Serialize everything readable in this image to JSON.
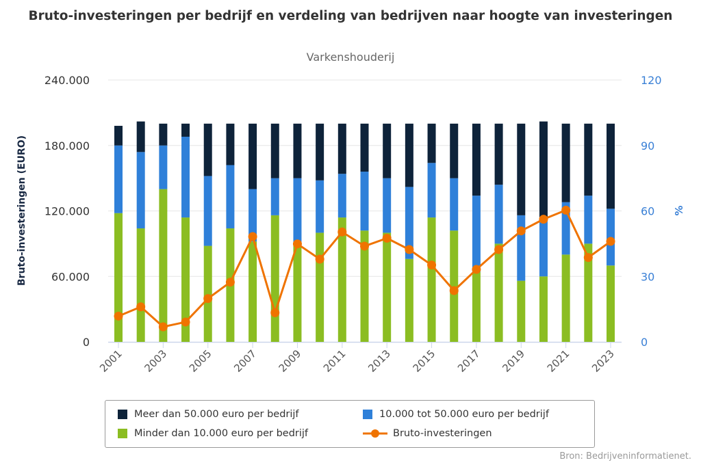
{
  "chart_data": {
    "type": "bar",
    "title": "Bruto-investeringen per bedrijf en verdeling van bedrijven naar hoogte van investeringen",
    "subtitle": "Varkenshouderij",
    "ylabel": "Bruto-investeringen (EURO)",
    "y2label": "%",
    "ylim": [
      0,
      240000
    ],
    "y2lim": [
      0,
      120
    ],
    "yticks": [
      "0",
      "60.000",
      "120.000",
      "180.000",
      "240.000"
    ],
    "y2ticks": [
      "0",
      "30",
      "60",
      "90",
      "120"
    ],
    "grid": true,
    "legend_position": "bottom",
    "categories": [
      "2001",
      "2002",
      "2003",
      "2004",
      "2005",
      "2006",
      "2007",
      "2008",
      "2009",
      "2010",
      "2011",
      "2012",
      "2013",
      "2014",
      "2015",
      "2016",
      "2017",
      "2018",
      "2019",
      "2020",
      "2021",
      "2022",
      "2023"
    ],
    "xtick_labels": [
      "2001",
      "2003",
      "2005",
      "2007",
      "2009",
      "2011",
      "2013",
      "2015",
      "2017",
      "2019",
      "2021",
      "2023"
    ],
    "series": [
      {
        "name": "Minder dan 10.000 euro per bedrijf",
        "type": "stacked-bar",
        "axis": "right",
        "color": "#8bbd22",
        "values": [
          59,
          52,
          70,
          57,
          44,
          52,
          46,
          58,
          45,
          50,
          57,
          51,
          50,
          38,
          57,
          51,
          32,
          45,
          28,
          30,
          40,
          45,
          35
        ]
      },
      {
        "name": "10.000 tot 50.000 euro per bedrijf",
        "type": "stacked-bar",
        "axis": "right",
        "color": "#2f80d9",
        "values": [
          31,
          35,
          20,
          37,
          32,
          29,
          24,
          17,
          30,
          24,
          20,
          27,
          25,
          33,
          25,
          24,
          35,
          27,
          30,
          27,
          24,
          22,
          26
        ]
      },
      {
        "name": "Meer dan 50.000 euro per bedrijf",
        "type": "stacked-bar",
        "axis": "right",
        "color": "#0e233a",
        "values": [
          9,
          14,
          10,
          6,
          24,
          19,
          30,
          25,
          25,
          26,
          23,
          22,
          25,
          29,
          18,
          25,
          33,
          28,
          42,
          44,
          36,
          33,
          39
        ]
      },
      {
        "name": "Bruto-investeringen",
        "type": "line",
        "axis": "left",
        "color": "#ef7300",
        "values": [
          23600,
          32100,
          13800,
          18200,
          39700,
          54700,
          96500,
          26700,
          89800,
          75800,
          100700,
          87700,
          95000,
          84600,
          70400,
          47000,
          66400,
          84600,
          101700,
          112400,
          120700,
          77300,
          92100
        ]
      }
    ],
    "source": "Bron: Bedrijveninformatienet."
  },
  "legend": [
    {
      "label": "Meer dan 50.000 euro per bedrijf",
      "color": "#0e233a"
    },
    {
      "label": "10.000 tot 50.000 euro per bedrijf",
      "color": "#2f80d9"
    },
    {
      "label": "Minder dan 10.000 euro per bedrijf",
      "color": "#8bbd22"
    },
    {
      "label": "Bruto-investeringen",
      "color": "#ef7300"
    }
  ]
}
